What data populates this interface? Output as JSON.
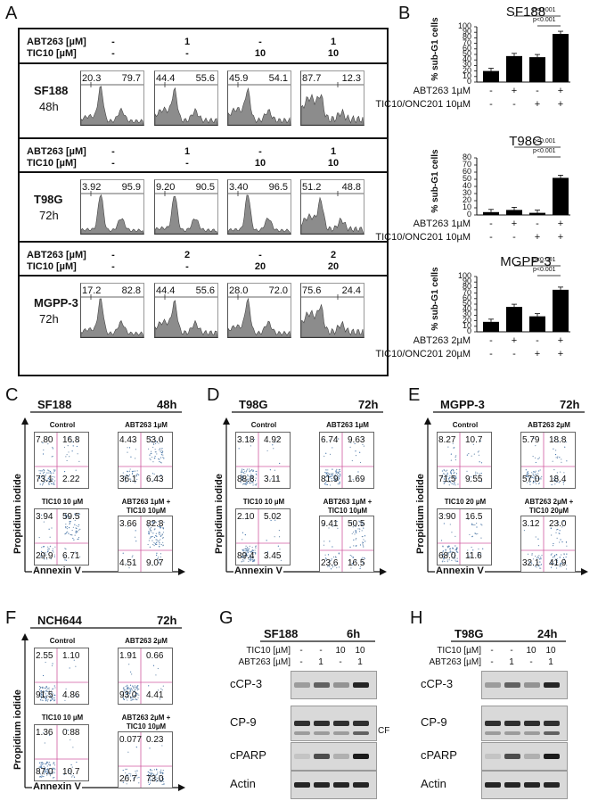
{
  "panel_labels": {
    "A": "A",
    "B": "B",
    "C": "C",
    "D": "D",
    "E": "E",
    "F": "F",
    "G": "G",
    "H": "H"
  },
  "panelA": {
    "treat_labels": {
      "abt": "ABT263 [µM]",
      "tic": "TIC10 [µM]"
    },
    "groups": [
      {
        "cell": "SF188",
        "time": "48h",
        "abt": [
          "-",
          "1",
          "-",
          "1"
        ],
        "tic": [
          "-",
          "-",
          "10",
          "10"
        ],
        "pct": [
          [
            "20.3",
            "79.7"
          ],
          [
            "44.4",
            "55.6"
          ],
          [
            "45.9",
            "54.1"
          ],
          [
            "87.7",
            "12.3"
          ]
        ]
      },
      {
        "cell": "T98G",
        "time": "72h",
        "abt": [
          "-",
          "1",
          "-",
          "1"
        ],
        "tic": [
          "-",
          "-",
          "10",
          "10"
        ],
        "pct": [
          [
            "3.92",
            "95.9"
          ],
          [
            "9.20",
            "90.5"
          ],
          [
            "3.40",
            "96.5"
          ],
          [
            "51.2",
            "48.8"
          ]
        ]
      },
      {
        "cell": "MGPP-3",
        "time": "72h",
        "abt": [
          "-",
          "2",
          "-",
          "2"
        ],
        "tic": [
          "-",
          "-",
          "20",
          "20"
        ],
        "pct": [
          [
            "17.2",
            "82.8"
          ],
          [
            "44.4",
            "55.6"
          ],
          [
            "28.0",
            "72.0"
          ],
          [
            "75.6",
            "24.4"
          ]
        ]
      }
    ]
  },
  "chart_data": [
    {
      "type": "bar",
      "title": "SF188",
      "ylabel": "% sub-G1 cells",
      "ylim": [
        0,
        100
      ],
      "yticks": [
        "0",
        "10",
        "20",
        "30",
        "40",
        "50",
        "60",
        "70",
        "80",
        "90",
        "100"
      ],
      "values": [
        20,
        47,
        45,
        87
      ],
      "row1_label": "ABT263 1µM",
      "row1": [
        "-",
        "+",
        "-",
        "+"
      ],
      "row2_label": "TIC10/ONC201 10µM",
      "row2": [
        "-",
        "-",
        "+",
        "+"
      ],
      "sig": [
        "p<0.001",
        "p<0.001"
      ]
    },
    {
      "type": "bar",
      "title": "T98G",
      "ylabel": "% sub-G1 cells",
      "ylim": [
        0,
        80
      ],
      "yticks": [
        "0",
        "10",
        "20",
        "30",
        "40",
        "50",
        "60",
        "70",
        "80"
      ],
      "values": [
        4,
        7,
        3,
        52
      ],
      "row1_label": "ABT263 1µM",
      "row1": [
        "-",
        "+",
        "-",
        "+"
      ],
      "row2_label": "TIC10/ONC201 10µM",
      "row2": [
        "-",
        "-",
        "+",
        "+"
      ],
      "sig": [
        "p<0.001",
        "p<0.001"
      ]
    },
    {
      "type": "bar",
      "title": "MGPP-3",
      "ylabel": "% sub-G1 cells",
      "ylim": [
        0,
        100
      ],
      "yticks": [
        "0",
        "10",
        "20",
        "30",
        "40",
        "50",
        "60",
        "70",
        "80",
        "90",
        "100"
      ],
      "values": [
        18,
        45,
        28,
        76
      ],
      "row1_label": "ABT263 2µM",
      "row1": [
        "-",
        "+",
        "-",
        "+"
      ],
      "row2_label": "TIC10/ONC201 20µM",
      "row2": [
        "-",
        "-",
        "+",
        "+"
      ],
      "sig": [
        "p<0.001",
        "p<0.001"
      ]
    }
  ],
  "facs": {
    "ylabel": "Propidium iodide",
    "xlabel": "Annexin V",
    "panels": [
      {
        "cell": "SF188",
        "time": "48h",
        "conds": [
          "Control",
          "ABT263 1µM",
          "TIC10 10 µM",
          "ABT263 1µM +\nTIC10 10µM"
        ],
        "q": [
          [
            "7.80",
            "16.8",
            "73.1",
            "2.22"
          ],
          [
            "4.43",
            "53.0",
            "36.1",
            "6.43"
          ],
          [
            "3.94",
            "59.5",
            "29.9",
            "6.71"
          ],
          [
            "3.66",
            "82.8",
            "4.51",
            "9.07"
          ]
        ]
      },
      {
        "cell": "T98G",
        "time": "72h",
        "conds": [
          "Control",
          "ABT263 1µM",
          "TIC10 10 µM",
          "ABT263 1µM +\nTIC10 10µM"
        ],
        "q": [
          [
            "3.18",
            "4.92",
            "88.8",
            "3.11"
          ],
          [
            "6.74",
            "9.63",
            "81.9",
            "1.69"
          ],
          [
            "2.10",
            "5.02",
            "89.4",
            "3.45"
          ],
          [
            "9.41",
            "50.5",
            "23.6",
            "16.5"
          ]
        ]
      },
      {
        "cell": "MGPP-3",
        "time": "72h",
        "conds": [
          "Control",
          "ABT263 2µM",
          "TIC10 20 µM",
          "ABT263 2µM +\nTIC10 20µM"
        ],
        "q": [
          [
            "8.27",
            "10.7",
            "71.5",
            "9.55"
          ],
          [
            "5.79",
            "18.8",
            "57.0",
            "18.4"
          ],
          [
            "3.90",
            "16.5",
            "68.0",
            "11.6"
          ],
          [
            "3.12",
            "23.0",
            "32.1",
            "41.9"
          ]
        ]
      },
      {
        "cell": "NCH644",
        "time": "72h",
        "conds": [
          "Control",
          "ABT263 2µM",
          "TIC10 10 µM",
          "ABT263 2µM +\nTIC10 10µM"
        ],
        "q": [
          [
            "2.55",
            "1.10",
            "91.5",
            "4.86"
          ],
          [
            "1.91",
            "0.66",
            "93.0",
            "4.41"
          ],
          [
            "1.36",
            "0.88",
            "87.0",
            "10.7"
          ],
          [
            "0.077",
            "0.23",
            "26.7",
            "73.0"
          ]
        ]
      }
    ]
  },
  "westerns": [
    {
      "cell": "SF188",
      "time": "6h",
      "row1_label": "TIC10 [µM]",
      "row1": [
        "-",
        "-",
        "10",
        "10"
      ],
      "row2_label": "ABT263 [µM]",
      "row2": [
        "-",
        "1",
        "-",
        "1"
      ],
      "bands": [
        "cCP-3",
        "CP-9",
        "cPARP",
        "Actin"
      ],
      "cf": "CF"
    },
    {
      "cell": "T98G",
      "time": "24h",
      "row1_label": "TIC10 [µM]",
      "row1": [
        "-",
        "-",
        "10",
        "10"
      ],
      "row2_label": "ABT263 [µM]",
      "row2": [
        "-",
        "1",
        "-",
        "1"
      ],
      "bands": [
        "cCP-3",
        "CP-9",
        "cPARP",
        "Actin"
      ]
    }
  ]
}
